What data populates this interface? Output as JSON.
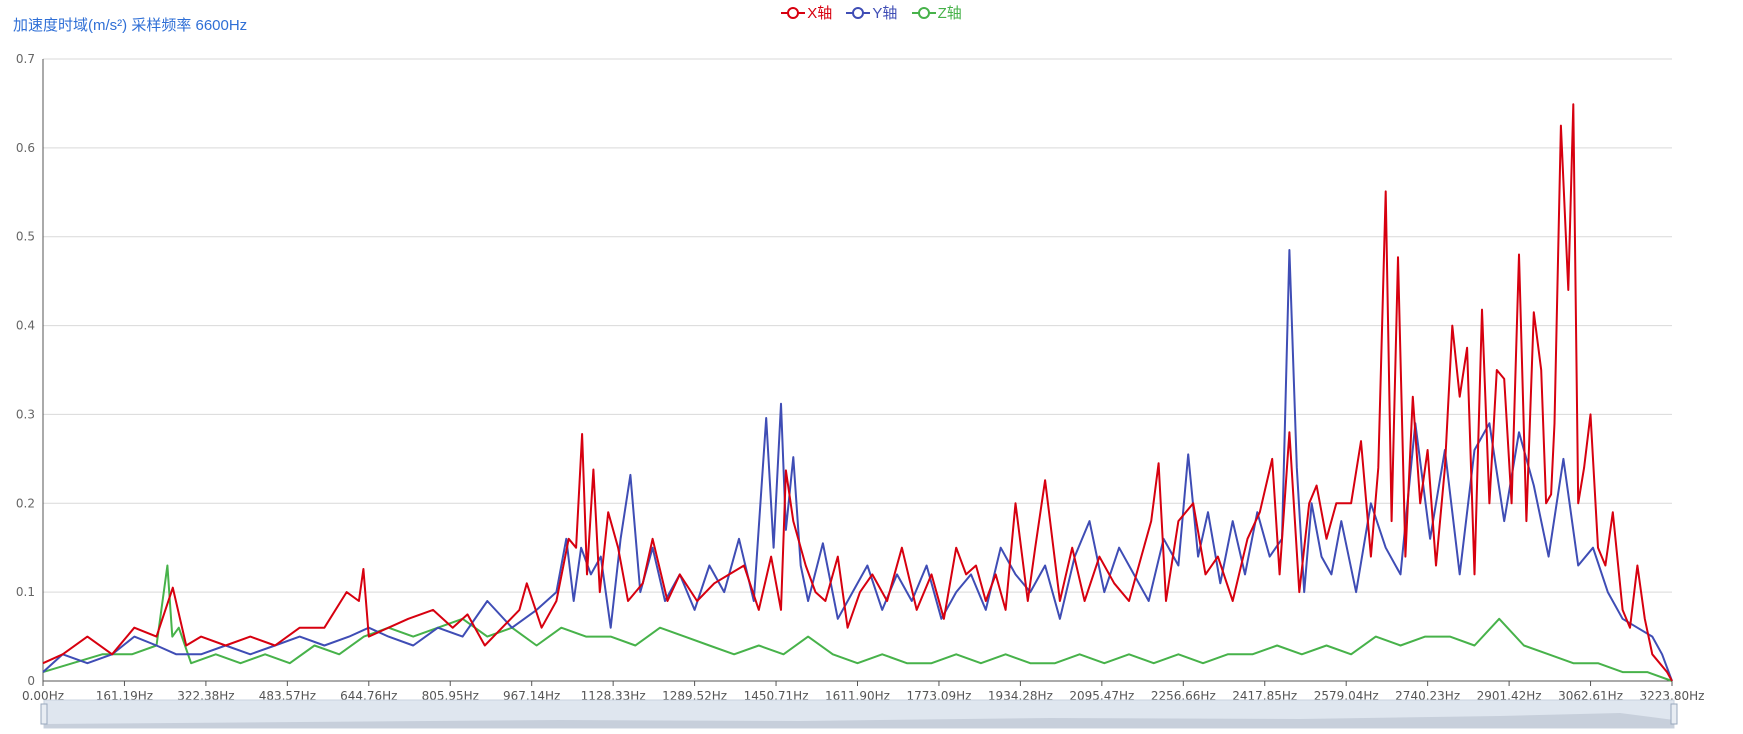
{
  "chart_data": {
    "type": "line",
    "title": "加速度时域(m/s²) 采样频率 6600Hz",
    "xlabel": "",
    "ylabel": "",
    "ylim": [
      0,
      0.7
    ],
    "yticks": [
      "0",
      "0.1",
      "0.2",
      "0.3",
      "0.4",
      "0.5",
      "0.6",
      "0.7"
    ],
    "xlim": [
      0,
      3300
    ],
    "xticks": [
      "0.00Hz",
      "161.19Hz",
      "322.38Hz",
      "483.57Hz",
      "644.76Hz",
      "805.95Hz",
      "967.14Hz",
      "1128.33Hz",
      "1289.52Hz",
      "1450.71Hz",
      "1611.90Hz",
      "1773.09Hz",
      "1934.28Hz",
      "2095.47Hz",
      "2256.66Hz",
      "2417.85Hz",
      "2579.04Hz",
      "2740.23Hz",
      "2901.42Hz",
      "3062.61Hz",
      "3223.80Hz"
    ],
    "legend_position": "top-center",
    "grid": true,
    "series": [
      {
        "name": "X轴",
        "color": "#d7000f",
        "x": [
          0,
          40,
          90,
          140,
          185,
          230,
          263,
          290,
          320,
          370,
          420,
          470,
          520,
          570,
          615,
          640,
          649,
          660,
          700,
          740,
          790,
          830,
          860,
          895,
          930,
          965,
          980,
          1010,
          1040,
          1065,
          1080,
          1092,
          1102,
          1115,
          1128,
          1145,
          1165,
          1185,
          1215,
          1235,
          1265,
          1290,
          1325,
          1360,
          1390,
          1420,
          1450,
          1475,
          1495,
          1505,
          1520,
          1545,
          1565,
          1585,
          1610,
          1630,
          1655,
          1680,
          1710,
          1740,
          1770,
          1800,
          1825,
          1850,
          1870,
          1890,
          1910,
          1930,
          1950,
          1970,
          1995,
          2010,
          2030,
          2060,
          2085,
          2110,
          2140,
          2170,
          2200,
          2225,
          2245,
          2260,
          2275,
          2300,
          2330,
          2355,
          2380,
          2410,
          2440,
          2465,
          2490,
          2505,
          2525,
          2545,
          2565,
          2580,
          2600,
          2620,
          2650,
          2670,
          2690,
          2705,
          2720,
          2732,
          2745,
          2760,
          2775,
          2790,
          2805,
          2822,
          2840,
          2855,
          2870,
          2885,
          2900,
          2915,
          2930,
          2945,
          2960,
          2975,
          2990,
          3005,
          3020,
          3035,
          3045,
          3055,
          3062,
          3075,
          3090,
          3100,
          3110,
          3122,
          3135,
          3150,
          3165,
          3180,
          3200,
          3215,
          3230,
          3245,
          3260,
          3275,
          3290,
          3300
        ],
        "values": [
          0.02,
          0.03,
          0.05,
          0.03,
          0.06,
          0.05,
          0.105,
          0.04,
          0.05,
          0.04,
          0.05,
          0.04,
          0.06,
          0.06,
          0.1,
          0.09,
          0.126,
          0.05,
          0.06,
          0.07,
          0.08,
          0.06,
          0.075,
          0.04,
          0.06,
          0.08,
          0.11,
          0.06,
          0.09,
          0.16,
          0.15,
          0.278,
          0.12,
          0.238,
          0.1,
          0.19,
          0.15,
          0.09,
          0.11,
          0.16,
          0.09,
          0.12,
          0.09,
          0.11,
          0.12,
          0.13,
          0.08,
          0.14,
          0.08,
          0.237,
          0.18,
          0.13,
          0.1,
          0.09,
          0.14,
          0.06,
          0.1,
          0.12,
          0.09,
          0.15,
          0.08,
          0.12,
          0.07,
          0.15,
          0.12,
          0.13,
          0.09,
          0.12,
          0.08,
          0.2,
          0.09,
          0.15,
          0.226,
          0.09,
          0.15,
          0.09,
          0.14,
          0.11,
          0.09,
          0.14,
          0.18,
          0.245,
          0.09,
          0.18,
          0.2,
          0.12,
          0.14,
          0.09,
          0.16,
          0.19,
          0.25,
          0.12,
          0.28,
          0.1,
          0.2,
          0.22,
          0.16,
          0.2,
          0.2,
          0.27,
          0.14,
          0.24,
          0.551,
          0.18,
          0.477,
          0.14,
          0.32,
          0.2,
          0.26,
          0.13,
          0.24,
          0.4,
          0.32,
          0.375,
          0.12,
          0.418,
          0.2,
          0.35,
          0.34,
          0.2,
          0.48,
          0.18,
          0.415,
          0.35,
          0.2,
          0.21,
          0.29,
          0.625,
          0.44,
          0.649,
          0.2,
          0.24,
          0.3,
          0.15,
          0.13,
          0.19,
          0.08,
          0.06,
          0.13,
          0.07,
          0.03,
          0.02,
          0.01,
          0.0
        ]
      },
      {
        "name": "Y轴",
        "color": "#3f4db5",
        "x": [
          0,
          40,
          90,
          140,
          185,
          230,
          270,
          320,
          370,
          420,
          470,
          520,
          570,
          620,
          660,
          700,
          750,
          800,
          850,
          900,
          950,
          1000,
          1040,
          1060,
          1075,
          1090,
          1110,
          1130,
          1150,
          1170,
          1190,
          1210,
          1235,
          1260,
          1290,
          1320,
          1350,
          1380,
          1410,
          1440,
          1465,
          1480,
          1495,
          1505,
          1520,
          1535,
          1550,
          1580,
          1610,
          1640,
          1670,
          1700,
          1730,
          1760,
          1790,
          1820,
          1850,
          1880,
          1910,
          1940,
          1970,
          2000,
          2030,
          2060,
          2090,
          2120,
          2150,
          2180,
          2210,
          2240,
          2270,
          2300,
          2320,
          2340,
          2360,
          2385,
          2410,
          2435,
          2460,
          2485,
          2510,
          2525,
          2540,
          2555,
          2570,
          2590,
          2610,
          2630,
          2660,
          2690,
          2720,
          2750,
          2780,
          2810,
          2840,
          2870,
          2900,
          2930,
          2960,
          2990,
          3020,
          3050,
          3080,
          3110,
          3140,
          3170,
          3200,
          3230,
          3260,
          3280,
          3300
        ],
        "values": [
          0.01,
          0.03,
          0.02,
          0.03,
          0.05,
          0.04,
          0.03,
          0.03,
          0.04,
          0.03,
          0.04,
          0.05,
          0.04,
          0.05,
          0.06,
          0.05,
          0.04,
          0.06,
          0.05,
          0.09,
          0.06,
          0.08,
          0.1,
          0.16,
          0.09,
          0.15,
          0.12,
          0.14,
          0.06,
          0.16,
          0.232,
          0.1,
          0.15,
          0.09,
          0.12,
          0.08,
          0.13,
          0.1,
          0.16,
          0.09,
          0.296,
          0.15,
          0.312,
          0.17,
          0.252,
          0.13,
          0.09,
          0.155,
          0.07,
          0.1,
          0.13,
          0.08,
          0.12,
          0.09,
          0.13,
          0.07,
          0.1,
          0.12,
          0.08,
          0.15,
          0.12,
          0.1,
          0.13,
          0.07,
          0.14,
          0.18,
          0.1,
          0.15,
          0.12,
          0.09,
          0.16,
          0.13,
          0.255,
          0.14,
          0.19,
          0.11,
          0.18,
          0.12,
          0.19,
          0.14,
          0.16,
          0.485,
          0.24,
          0.1,
          0.2,
          0.14,
          0.12,
          0.18,
          0.1,
          0.2,
          0.15,
          0.12,
          0.29,
          0.16,
          0.26,
          0.12,
          0.26,
          0.29,
          0.18,
          0.28,
          0.22,
          0.14,
          0.25,
          0.13,
          0.15,
          0.1,
          0.07,
          0.06,
          0.05,
          0.03,
          0.0
        ]
      },
      {
        "name": "Z轴",
        "color": "#47b24a",
        "x": [
          0,
          60,
          120,
          180,
          230,
          252,
          262,
          275,
          300,
          350,
          400,
          450,
          500,
          550,
          600,
          650,
          700,
          750,
          800,
          850,
          900,
          950,
          1000,
          1050,
          1100,
          1150,
          1200,
          1250,
          1300,
          1350,
          1400,
          1450,
          1500,
          1550,
          1600,
          1650,
          1700,
          1750,
          1800,
          1850,
          1900,
          1950,
          2000,
          2050,
          2100,
          2150,
          2200,
          2250,
          2300,
          2350,
          2400,
          2450,
          2500,
          2550,
          2600,
          2650,
          2700,
          2750,
          2800,
          2850,
          2900,
          2950,
          3000,
          3050,
          3100,
          3150,
          3200,
          3250,
          3300
        ],
        "values": [
          0.01,
          0.02,
          0.03,
          0.03,
          0.04,
          0.13,
          0.05,
          0.06,
          0.02,
          0.03,
          0.02,
          0.03,
          0.02,
          0.04,
          0.03,
          0.05,
          0.06,
          0.05,
          0.06,
          0.07,
          0.05,
          0.06,
          0.04,
          0.06,
          0.05,
          0.05,
          0.04,
          0.06,
          0.05,
          0.04,
          0.03,
          0.04,
          0.03,
          0.05,
          0.03,
          0.02,
          0.03,
          0.02,
          0.02,
          0.03,
          0.02,
          0.03,
          0.02,
          0.02,
          0.03,
          0.02,
          0.03,
          0.02,
          0.03,
          0.02,
          0.03,
          0.03,
          0.04,
          0.03,
          0.04,
          0.03,
          0.05,
          0.04,
          0.05,
          0.05,
          0.04,
          0.07,
          0.04,
          0.03,
          0.02,
          0.02,
          0.01,
          0.01,
          0.0
        ]
      }
    ]
  }
}
